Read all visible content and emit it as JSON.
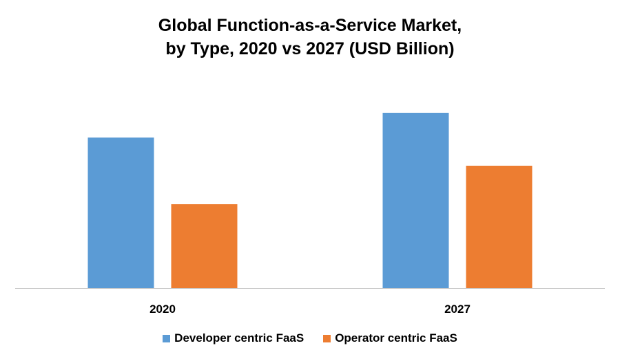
{
  "chart_data": {
    "type": "bar",
    "title": "Global Function-as-a-Service Market, by Type, 2020 vs 2027 (USD Billion)",
    "title_lines": [
      "Global Function-as-a-Service Market,",
      "by Type, 2020 vs 2027 (USD Billion)"
    ],
    "categories": [
      "2020",
      "2027"
    ],
    "series": [
      {
        "name": "Developer centric FaaS",
        "color": "#5b9bd5",
        "values": [
          219,
          255
        ]
      },
      {
        "name": "Operator centric FaaS",
        "color": "#ed7d31",
        "values": [
          122,
          178
        ]
      }
    ],
    "value_note_hidden": true,
    "ylim": [
      0,
      300
    ],
    "y_axis_shown": false,
    "grid": false,
    "legend": "bottom",
    "xlabel": "",
    "ylabel": ""
  }
}
